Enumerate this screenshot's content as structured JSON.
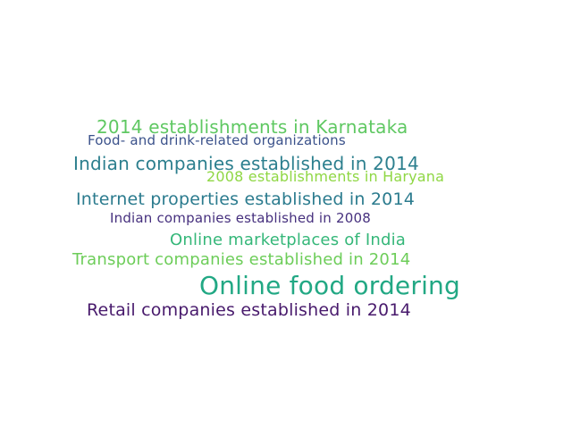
{
  "words": [
    {
      "text": "2014 establishments in Karnataka",
      "color": "#5fc862"
    },
    {
      "text": "Food- and drink-related organizations",
      "color": "#3b528b"
    },
    {
      "text": "Indian companies established in 2014",
      "color": "#2c7f8e"
    },
    {
      "text": "2008 establishments in Haryana",
      "color": "#8fd744"
    },
    {
      "text": "Internet properties established in 2014",
      "color": "#2b7b8e"
    },
    {
      "text": "Indian companies established in 2008",
      "color": "#46307e"
    },
    {
      "text": "Online marketplaces of India",
      "color": "#35b779"
    },
    {
      "text": "Transport companies established in 2014",
      "color": "#6dcd59"
    },
    {
      "text": "Online food ordering",
      "color": "#22a884"
    },
    {
      "text": "Retail companies established in 2014",
      "color": "#481a6c"
    }
  ]
}
